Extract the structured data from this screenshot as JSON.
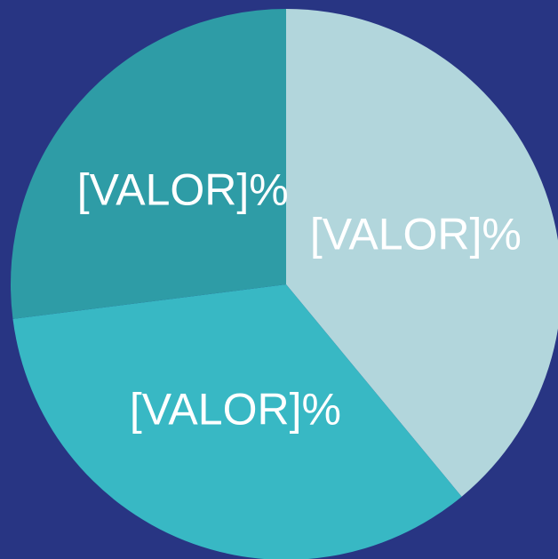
{
  "chart_data": {
    "type": "pie",
    "values": [
      39,
      34,
      27
    ],
    "value_labels": [
      "[VALOR]%",
      "[VALOR]%",
      "[VALOR]%"
    ],
    "colors": [
      "#b2d6dc",
      "#38b8c4",
      "#2e9ca6"
    ],
    "background": "#283583"
  }
}
